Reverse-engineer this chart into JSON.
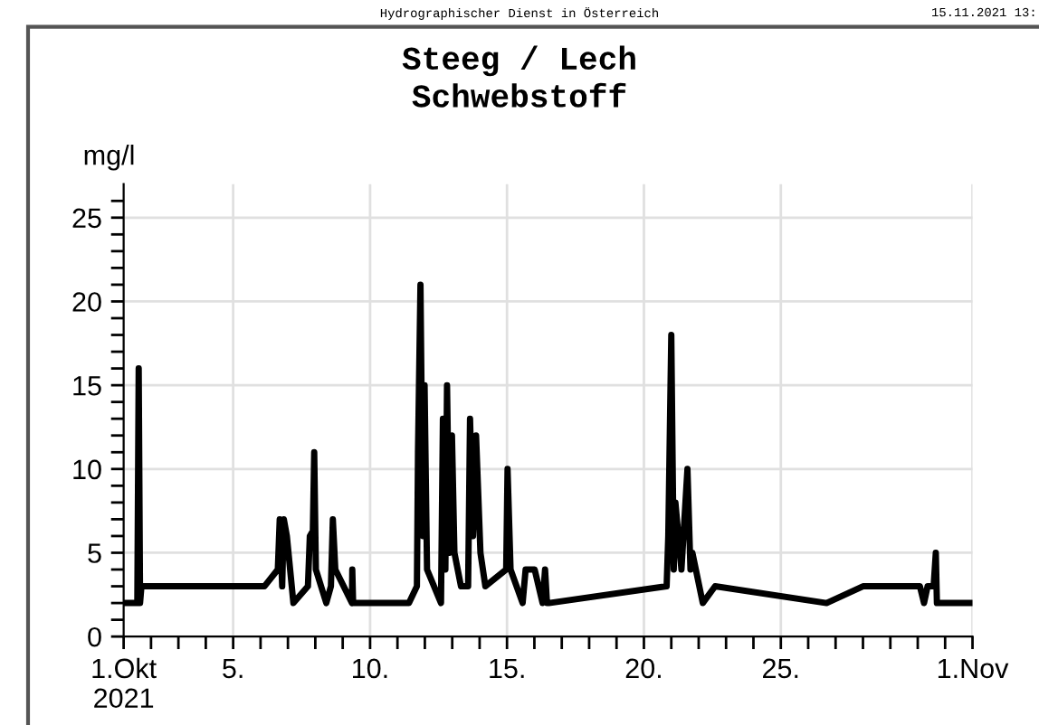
{
  "chart_data": {
    "type": "line",
    "title": "Steeg / Lech\nSchwebstoff",
    "ylabel": "mg/l",
    "annotations": [
      "Hydrographischer Dienst in Österreich",
      "15.11.2021 13:"
    ],
    "series": [
      {
        "color": "#000000",
        "x": [
          1.0,
          1.5,
          1.55,
          1.6,
          1.65,
          6.14,
          6.63,
          6.7,
          6.79,
          6.85,
          6.96,
          7.2,
          7.73,
          7.8,
          7.91,
          7.96,
          8.02,
          8.4,
          8.57,
          8.64,
          8.73,
          9.34,
          9.35,
          9.38,
          11.42,
          11.71,
          11.75,
          11.84,
          11.93,
          11.99,
          12.08,
          12.59,
          12.66,
          12.75,
          12.81,
          12.9,
          12.99,
          13.08,
          13.32,
          13.58,
          13.65,
          13.76,
          13.87,
          14.03,
          14.21,
          14.97,
          15.02,
          15.13,
          15.57,
          15.68,
          16.01,
          16.3,
          16.39,
          16.46,
          16.53,
          20.83,
          20.89,
          21.0,
          21.09,
          21.15,
          21.37,
          21.59,
          21.7,
          21.77,
          22.15,
          22.6,
          26.67,
          28.0,
          30.08,
          30.23,
          30.36,
          30.58,
          30.66,
          30.7,
          32.0
        ],
        "values": [
          2,
          2,
          16,
          2,
          3,
          3,
          4,
          7,
          3,
          7,
          6,
          2,
          3,
          6,
          6.3,
          11,
          4,
          2,
          3,
          7,
          4,
          2,
          4,
          2,
          2,
          3,
          11,
          21,
          6,
          15,
          4,
          2,
          13,
          4,
          15,
          5,
          12,
          5,
          3,
          3,
          13,
          6,
          12,
          5,
          3,
          4,
          10,
          4,
          2,
          4,
          4,
          2,
          4,
          2,
          2,
          3,
          6,
          18,
          4,
          8,
          4,
          10,
          4,
          5,
          2,
          3,
          2,
          3,
          3,
          2,
          3,
          3,
          5,
          2,
          2
        ]
      }
    ],
    "xlim": [
      1,
      32
    ],
    "xticks": [
      {
        "value": 1,
        "label": "1.Okt\n2021"
      },
      {
        "value": 2,
        "label": null
      },
      {
        "value": 3,
        "label": null
      },
      {
        "value": 4,
        "label": null
      },
      {
        "value": 5,
        "label": "5."
      },
      {
        "value": 6,
        "label": null
      },
      {
        "value": 7,
        "label": null
      },
      {
        "value": 8,
        "label": null
      },
      {
        "value": 9,
        "label": null
      },
      {
        "value": 10,
        "label": "10."
      },
      {
        "value": 11,
        "label": null
      },
      {
        "value": 12,
        "label": null
      },
      {
        "value": 13,
        "label": null
      },
      {
        "value": 14,
        "label": null
      },
      {
        "value": 15,
        "label": "15."
      },
      {
        "value": 16,
        "label": null
      },
      {
        "value": 17,
        "label": null
      },
      {
        "value": 18,
        "label": null
      },
      {
        "value": 19,
        "label": null
      },
      {
        "value": 20,
        "label": "20."
      },
      {
        "value": 21,
        "label": null
      },
      {
        "value": 22,
        "label": null
      },
      {
        "value": 23,
        "label": null
      },
      {
        "value": 24,
        "label": null
      },
      {
        "value": 25,
        "label": "25."
      },
      {
        "value": 26,
        "label": null
      },
      {
        "value": 27,
        "label": null
      },
      {
        "value": 28,
        "label": null
      },
      {
        "value": 29,
        "label": null
      },
      {
        "value": 30,
        "label": null
      },
      {
        "value": 31,
        "label": null
      },
      {
        "value": 32,
        "label": "1.Nov"
      }
    ],
    "ylim": [
      0,
      27
    ],
    "yticks": [
      0,
      {
        "value": 1,
        "label": null
      },
      {
        "value": 2,
        "label": null
      },
      {
        "value": 3,
        "label": null
      },
      {
        "value": 4,
        "label": null
      },
      5,
      {
        "value": 6,
        "label": null
      },
      {
        "value": 7,
        "label": null
      },
      {
        "value": 8,
        "label": null
      },
      {
        "value": 9,
        "label": null
      },
      10,
      {
        "value": 11,
        "label": null
      },
      {
        "value": 12,
        "label": null
      },
      {
        "value": 13,
        "label": null
      },
      {
        "value": 14,
        "label": null
      },
      15,
      {
        "value": 16,
        "label": null
      },
      {
        "value": 17,
        "label": null
      },
      {
        "value": 18,
        "label": null
      },
      {
        "value": 19,
        "label": null
      },
      20,
      {
        "value": 21,
        "label": null
      },
      {
        "value": 22,
        "label": null
      },
      {
        "value": 23,
        "label": null
      },
      {
        "value": 24,
        "label": null
      },
      25,
      {
        "value": 26,
        "label": null
      }
    ],
    "grid": true,
    "marker": "none",
    "line_style": "solid"
  }
}
